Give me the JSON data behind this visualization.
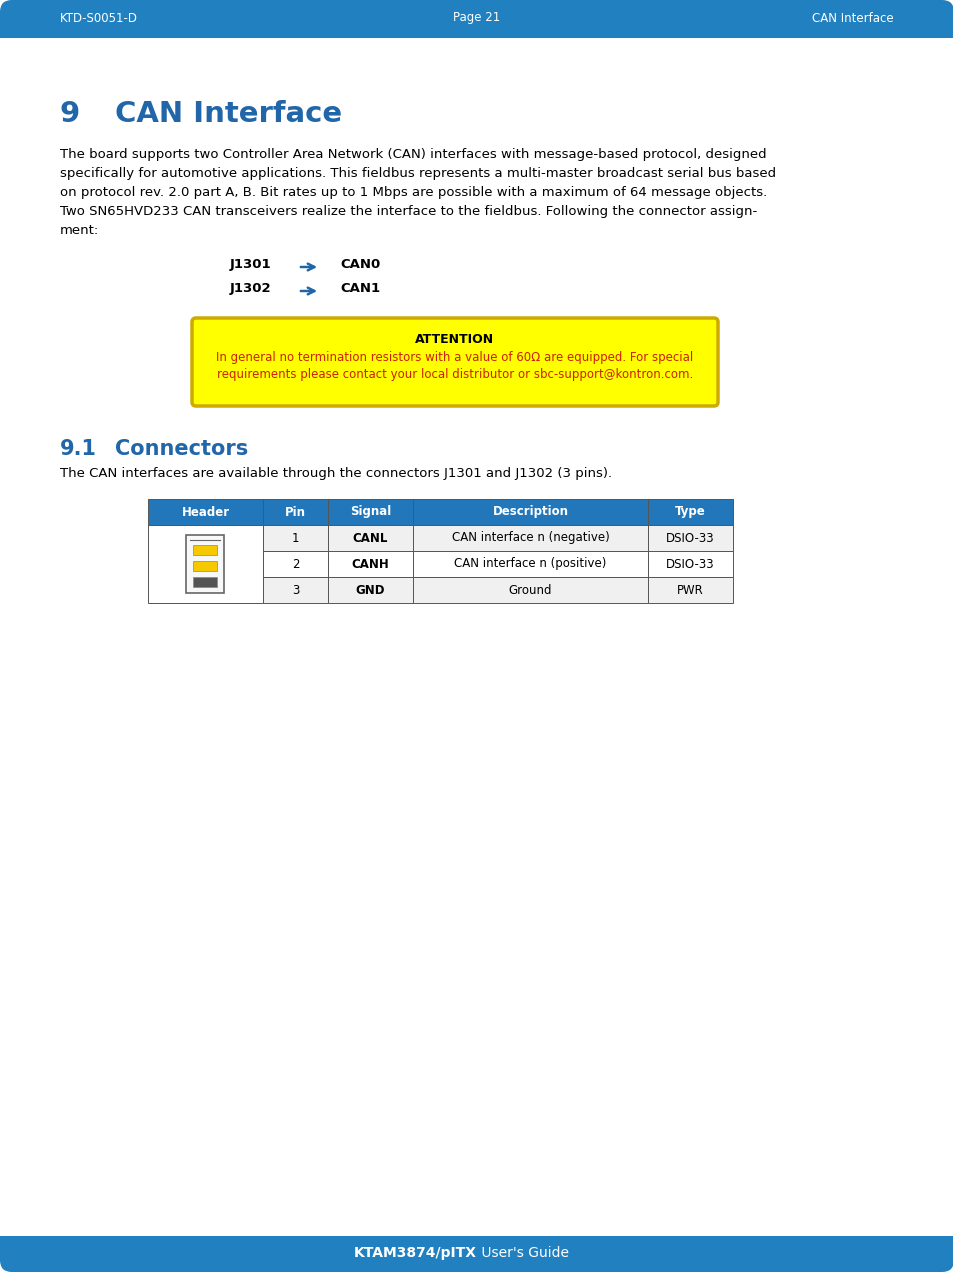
{
  "page_bg": "#ffffff",
  "header_bg": "#2080c0",
  "header_text_color": "#ffffff",
  "header_left": "KTD-S0051-D",
  "header_center": "Page 21",
  "header_right": "CAN Interface",
  "footer_bg": "#2080c0",
  "footer_bold": "KTAM3874/pITX",
  "footer_normal": " User's Guide",
  "footer_text_color": "#ffffff",
  "section_num": "9",
  "section_title": "CAN Interface",
  "section_color": "#2266aa",
  "body_color": "#000000",
  "body_fs": 9.5,
  "para1_lines": [
    "The board supports two Controller Area Network (CAN) interfaces with message-based protocol, designed",
    "specifically for automotive applications. This fieldbus represents a multi-master broadcast serial bus based",
    "on protocol rev. 2.0 part A, B. Bit rates up to 1 Mbps are possible with a maximum of 64 message objects.",
    "Two SN65HVD233 CAN transceivers realize the interface to the fieldbus. Following the connector assign-",
    "ment:"
  ],
  "mapping": [
    {
      "left": "J1301",
      "right": "CAN0"
    },
    {
      "left": "J1302",
      "right": "CAN1"
    }
  ],
  "arrow_color": "#2266aa",
  "attn_bg": "#ffff00",
  "attn_border": "#ccaa00",
  "attn_title": "ATTENTION",
  "attn_body_lines": [
    "In general no termination resistors with a value of 60Ω are equipped. For special",
    "requirements please contact your local distributor or sbc-support@kontron.com."
  ],
  "attn_body_color": "#cc2200",
  "sub_num": "9.1",
  "sub_title": "Connectors",
  "sub_color": "#2266aa",
  "conn_text": "The CAN interfaces are available through the connectors J1301 and J1302 (3 pins).",
  "tbl_hdr_bg": "#2277bb",
  "tbl_hdr_fg": "#ffffff",
  "tbl_cols": [
    "Header",
    "Pin",
    "Signal",
    "Description",
    "Type"
  ],
  "tbl_col_w": [
    115,
    65,
    85,
    235,
    85
  ],
  "tbl_row_bg": [
    "#f0f0f0",
    "#ffffff",
    "#f0f0f0"
  ],
  "tbl_rows": [
    [
      "1",
      "CANL",
      "CAN interface n (negative)",
      "DSIO-33"
    ],
    [
      "2",
      "CANH",
      "CAN interface n (positive)",
      "DSIO-33"
    ],
    [
      "3",
      "GND",
      "Ground",
      "PWR"
    ]
  ]
}
